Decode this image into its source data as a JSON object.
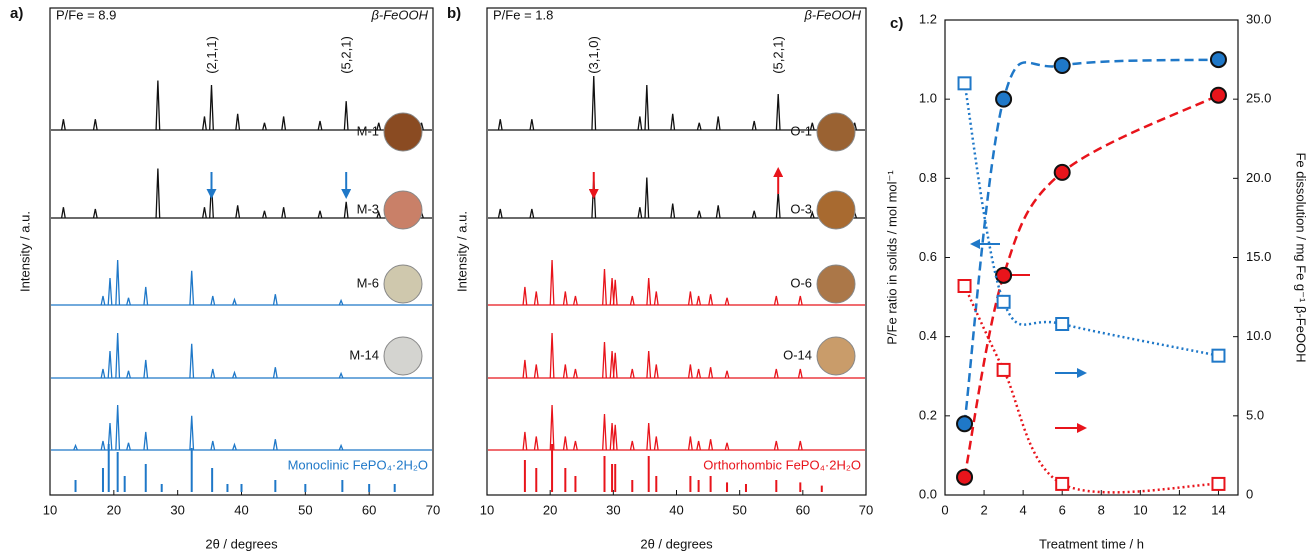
{
  "chart_data": [
    {
      "type": "xrd",
      "panel_label": "a)",
      "annotation": "P/Fe = 8.9",
      "phase_label": "β-FeOOH",
      "xlabel": "2θ / degrees",
      "ylabel": "Intensity / a.u.",
      "xlim": [
        10,
        70
      ],
      "xticks": [
        10,
        20,
        30,
        40,
        50,
        60,
        70
      ],
      "hkl": [
        {
          "text": "(2,1,1)",
          "x": 35.3
        },
        {
          "text": "(5,2,1)",
          "x": 56.4
        }
      ],
      "arrows": [
        {
          "x": 35.3,
          "color": "#1f78c8",
          "direction": "down"
        },
        {
          "x": 56.4,
          "color": "#1f78c8",
          "direction": "down"
        }
      ],
      "traces": [
        {
          "color": "#111111",
          "style": "line",
          "x": [
            12.1,
            17.1,
            26.9,
            34.2,
            35.3,
            39.4,
            43.6,
            46.6,
            52.3,
            56.4,
            61.5,
            64.8,
            68.2
          ],
          "h": [
            0.12,
            0.12,
            0.55,
            0.15,
            0.5,
            0.18,
            0.08,
            0.15,
            0.1,
            0.32,
            0.08,
            0.1,
            0.08
          ]
        },
        {
          "name": "M-1",
          "photo_color": "#8a4b22",
          "color": "#111111",
          "style": "line",
          "x": [
            12.1,
            17.1,
            26.9,
            34.2,
            35.3,
            39.4,
            43.6,
            46.6,
            52.3,
            56.4,
            61.5,
            64.8,
            68.2
          ],
          "h": [
            0.12,
            0.1,
            0.55,
            0.12,
            0.4,
            0.14,
            0.08,
            0.12,
            0.08,
            0.18,
            0.06,
            0.08,
            0.06
          ]
        },
        {
          "name": "M-3",
          "photo_color": "#c98068",
          "color": "#1f78c8",
          "style": "line",
          "x": [
            18.3,
            19.4,
            20.6,
            22.3,
            25.0,
            32.2,
            35.5,
            38.9,
            45.3,
            55.6
          ],
          "h": [
            0.1,
            0.3,
            0.5,
            0.08,
            0.2,
            0.38,
            0.1,
            0.06,
            0.12,
            0.05
          ]
        },
        {
          "name": "M-6",
          "photo_color": "#cfc8ad",
          "color": "#1f78c8",
          "style": "line",
          "x": [
            18.3,
            19.4,
            20.6,
            22.3,
            25.0,
            32.2,
            35.5,
            38.9,
            45.3,
            55.6
          ],
          "h": [
            0.1,
            0.3,
            0.5,
            0.08,
            0.2,
            0.38,
            0.1,
            0.06,
            0.12,
            0.05
          ]
        },
        {
          "name": "M-14",
          "photo_color": "#d4d4d0",
          "color": "#1f78c8",
          "style": "line",
          "x": [
            14.0,
            18.3,
            19.4,
            20.6,
            22.3,
            25.0,
            32.2,
            35.5,
            38.9,
            45.3,
            55.6
          ],
          "h": [
            0.05,
            0.1,
            0.3,
            0.5,
            0.08,
            0.2,
            0.38,
            0.1,
            0.06,
            0.12,
            0.05
          ]
        },
        {
          "name": "Monoclinic FePO₄·2H₂O",
          "color": "#1f78c8",
          "style": "stick",
          "x": [
            14.0,
            18.3,
            19.2,
            20.6,
            21.7,
            25.0,
            27.5,
            32.2,
            35.4,
            37.8,
            40.0,
            45.3,
            50.0,
            55.8,
            60.0,
            64.0
          ],
          "h": [
            0.15,
            0.3,
            0.6,
            0.5,
            0.2,
            0.35,
            0.1,
            0.55,
            0.3,
            0.1,
            0.1,
            0.15,
            0.1,
            0.15,
            0.1,
            0.1
          ]
        }
      ]
    },
    {
      "type": "xrd",
      "panel_label": "b)",
      "annotation": "P/Fe = 1.8",
      "phase_label": "β-FeOOH",
      "xlabel": "2θ / degrees",
      "ylabel": "Intensity / a.u.",
      "xlim": [
        10,
        70
      ],
      "xticks": [
        10,
        20,
        30,
        40,
        50,
        60,
        70
      ],
      "hkl": [
        {
          "text": "(3,1,0)",
          "x": 26.9
        },
        {
          "text": "(5,2,1)",
          "x": 56.1
        }
      ],
      "arrows": [
        {
          "x": 26.9,
          "color": "#e8141b",
          "direction": "down"
        },
        {
          "x": 56.1,
          "color": "#e8141b",
          "direction": "up"
        }
      ],
      "traces": [
        {
          "color": "#111111",
          "style": "line",
          "x": [
            12.1,
            17.1,
            26.9,
            34.2,
            35.3,
            39.4,
            43.6,
            46.6,
            52.3,
            56.1,
            61.5,
            64.8,
            68.2
          ],
          "h": [
            0.12,
            0.12,
            0.6,
            0.15,
            0.5,
            0.18,
            0.08,
            0.15,
            0.1,
            0.4,
            0.08,
            0.1,
            0.08
          ]
        },
        {
          "name": "O-1",
          "photo_color": "#9a6232",
          "color": "#111111",
          "style": "line",
          "x": [
            12.1,
            17.1,
            26.9,
            34.2,
            35.3,
            39.4,
            43.6,
            46.6,
            52.3,
            56.1,
            61.5,
            64.8,
            68.2
          ],
          "h": [
            0.1,
            0.1,
            0.45,
            0.12,
            0.45,
            0.16,
            0.08,
            0.14,
            0.08,
            0.3,
            0.06,
            0.08,
            0.06
          ]
        },
        {
          "name": "O-3",
          "photo_color": "#a86a30",
          "color": "#e8141b",
          "style": "line",
          "x": [
            16.0,
            17.8,
            20.3,
            22.4,
            24.0,
            28.6,
            29.8,
            30.3,
            33.0,
            35.6,
            36.8,
            42.2,
            43.5,
            45.4,
            48.0,
            55.8,
            59.6
          ],
          "h": [
            0.2,
            0.15,
            0.5,
            0.15,
            0.1,
            0.4,
            0.3,
            0.28,
            0.1,
            0.3,
            0.15,
            0.15,
            0.1,
            0.12,
            0.08,
            0.1,
            0.1
          ]
        },
        {
          "name": "O-6",
          "photo_color": "#ab7748",
          "color": "#e8141b",
          "style": "line",
          "x": [
            16.0,
            17.8,
            20.3,
            22.4,
            24.0,
            28.6,
            29.8,
            30.3,
            33.0,
            35.6,
            36.8,
            42.2,
            43.5,
            45.4,
            48.0,
            55.8,
            59.6
          ],
          "h": [
            0.2,
            0.15,
            0.5,
            0.15,
            0.1,
            0.4,
            0.3,
            0.28,
            0.1,
            0.3,
            0.15,
            0.15,
            0.1,
            0.12,
            0.08,
            0.1,
            0.1
          ]
        },
        {
          "name": "O-14",
          "photo_color": "#c99c6a",
          "color": "#e8141b",
          "style": "line",
          "x": [
            16.0,
            17.8,
            20.3,
            22.4,
            24.0,
            28.6,
            29.8,
            30.3,
            33.0,
            35.6,
            36.8,
            42.2,
            43.5,
            45.4,
            48.0,
            55.8,
            59.6
          ],
          "h": [
            0.2,
            0.15,
            0.5,
            0.15,
            0.1,
            0.4,
            0.3,
            0.28,
            0.1,
            0.3,
            0.15,
            0.15,
            0.1,
            0.12,
            0.08,
            0.1,
            0.1
          ]
        },
        {
          "name": "Orthorhombic FePO₄·2H₂O",
          "color": "#e8141b",
          "style": "stick",
          "x": [
            16.0,
            17.8,
            20.3,
            22.4,
            24.0,
            28.6,
            29.8,
            30.3,
            33.0,
            35.6,
            36.8,
            42.2,
            43.5,
            45.4,
            48.0,
            51.0,
            55.8,
            59.6,
            63.0
          ],
          "h": [
            0.4,
            0.3,
            0.6,
            0.3,
            0.2,
            0.45,
            0.35,
            0.35,
            0.15,
            0.45,
            0.2,
            0.2,
            0.15,
            0.2,
            0.12,
            0.1,
            0.15,
            0.12,
            0.08
          ]
        }
      ]
    },
    {
      "type": "scatter",
      "panel_label": "c)",
      "xlabel": "Treatment time / h",
      "ylabel": "P/Fe ratio in  solids / mol mol⁻¹",
      "y2label": "Fe dissolution / mg Fe g⁻¹ β-FeOOH",
      "xlim": [
        0,
        15
      ],
      "xticks": [
        0,
        2,
        4,
        6,
        8,
        10,
        12,
        14
      ],
      "ylim": [
        0,
        1.2
      ],
      "yticks": [
        {
          "value": 0,
          "label": "0.0"
        },
        0.2,
        0.4,
        0.6,
        0.8,
        {
          "value": 1,
          "label": "1.0"
        },
        {
          "value": 1.2,
          "label": "1.2"
        }
      ],
      "y2lim": [
        0,
        30
      ],
      "y2ticks": [
        0,
        {
          "value": 5,
          "label": "5.0"
        },
        {
          "value": 10,
          "label": "10.0"
        },
        {
          "value": 15,
          "label": "15.0"
        },
        {
          "value": 20,
          "label": "20.0"
        },
        {
          "value": 25,
          "label": "25.0"
        },
        {
          "value": 30,
          "label": "30.0"
        }
      ],
      "series": [
        {
          "color": "#1f78c8",
          "marker": "circle",
          "line_style": "dashed",
          "x": [
            1,
            3,
            6,
            14
          ],
          "values": [
            0.18,
            1.0,
            1.085,
            1.1
          ]
        },
        {
          "color": "#e8141b",
          "marker": "circle",
          "line_style": "dashed",
          "x": [
            1,
            3,
            6,
            14
          ],
          "values": [
            0.045,
            0.555,
            0.815,
            1.01
          ]
        },
        {
          "color": "#1f78c8",
          "marker": "square",
          "line_style": "dotted",
          "axis": "y2",
          "x": [
            1,
            3,
            6,
            14
          ],
          "values": [
            26,
            12.2,
            10.8,
            8.8
          ]
        },
        {
          "color": "#e8141b",
          "marker": "square",
          "line_style": "dotted",
          "axis": "y2",
          "x": [
            1,
            3,
            6,
            14
          ],
          "values": [
            13.2,
            7.9,
            0.7,
            0.7
          ]
        }
      ]
    }
  ]
}
